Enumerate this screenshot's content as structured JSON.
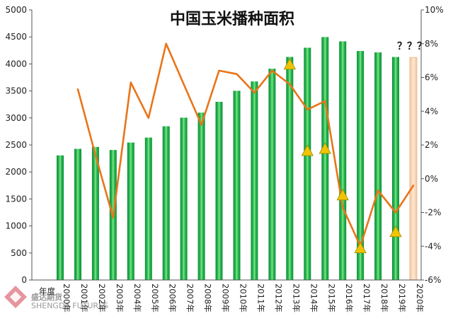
{
  "chart_data": {
    "type": "bar",
    "title": "中国玉米播种面积",
    "category_label": "年度",
    "categories": [
      "2000年",
      "2001年",
      "2002年",
      "2003年",
      "2004年",
      "2005年",
      "2006年",
      "2007年",
      "2008年",
      "2009年",
      "2010年",
      "2011年",
      "2012年",
      "2013年",
      "2014年",
      "2015年",
      "2016年",
      "2017年",
      "2018年",
      "2019年",
      "2020年"
    ],
    "y_left": {
      "ylim": [
        0,
        5000
      ],
      "ticks": [
        "0",
        "500",
        "1000",
        "1500",
        "2000",
        "2500",
        "3000",
        "3500",
        "4000",
        "4500",
        "5000"
      ]
    },
    "y_right": {
      "ylim": [
        -6,
        10
      ],
      "unit": "%",
      "ticks": [
        "-6%",
        "-4%",
        "-2%",
        "0%",
        "2%",
        "4%",
        "6%",
        "8%",
        "10%"
      ]
    },
    "series": [
      {
        "kind": "bar",
        "axis": "left",
        "values": [
          2306,
          2428,
          2463,
          2407,
          2545,
          2636,
          2846,
          3005,
          3098,
          3298,
          3502,
          3676,
          3911,
          4130,
          4300,
          4497,
          4418,
          4240,
          4213,
          4128,
          4120
        ],
        "colors": {
          "bar": "#10a040",
          "bar_highlight": "#8de88c",
          "estimate": "#f9d2b0",
          "estimate_edge": "#e8b487"
        }
      },
      {
        "kind": "line",
        "axis": "right",
        "color": "#e8751a",
        "values": [
          null,
          5.3,
          1.4,
          -2.3,
          5.7,
          3.6,
          8.0,
          5.6,
          3.2,
          6.4,
          6.2,
          5.1,
          6.4,
          5.6,
          4.1,
          4.6,
          -1.7,
          -4.0,
          -0.7,
          -2.0,
          -0.4
        ]
      }
    ],
    "annotations": {
      "triangles": [
        {
          "category": "2013年",
          "value": 4000
        },
        {
          "category": "2014年",
          "value": 2400
        },
        {
          "category": "2015年",
          "value": 2440
        },
        {
          "category": "2016年",
          "value": 1580
        },
        {
          "category": "2017年",
          "value": 600
        },
        {
          "category": "2019年",
          "value": 900
        }
      ],
      "triangle_color": "#f2c400",
      "question_marks": "？？？"
    },
    "grid": false,
    "legend": "none"
  },
  "watermark": {
    "text": "SHENGDA FUTURES",
    "brand": "盛达期货"
  }
}
